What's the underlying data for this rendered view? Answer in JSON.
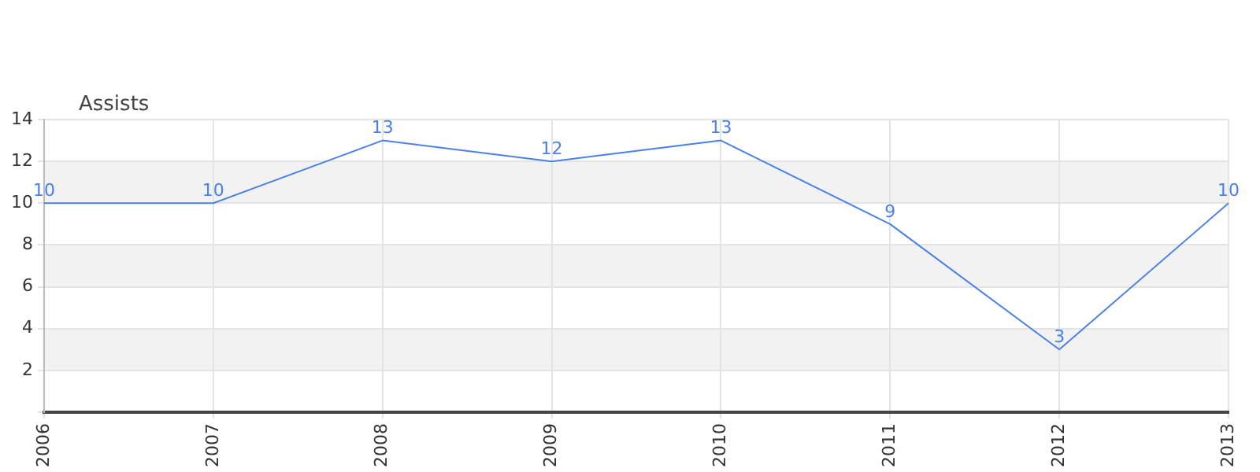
{
  "chart_data": {
    "type": "line",
    "ylabel": "Assists",
    "categories": [
      "2006",
      "2007",
      "2008",
      "2009",
      "2010",
      "2011",
      "2012",
      "2013"
    ],
    "series": [
      {
        "color": "#4a80e8",
        "values": [
          10,
          10,
          13,
          12,
          13,
          9,
          3,
          10
        ]
      }
    ],
    "ylim": [
      0,
      14
    ],
    "yticks": [
      {
        "value": 0,
        "label": null
      },
      2,
      4,
      6,
      8,
      10,
      12,
      14
    ],
    "bands": [
      {
        "axis": "y",
        "from": 2,
        "to": 4,
        "color": "#f2f2f2"
      },
      {
        "axis": "y",
        "from": 6,
        "to": 8,
        "color": "#f2f2f2"
      },
      {
        "axis": "y",
        "from": 10,
        "to": 12,
        "color": "#f2f2f2"
      }
    ],
    "grid": true,
    "legend": false,
    "marker": "none",
    "line_style": "solid",
    "data_labels": true
  }
}
